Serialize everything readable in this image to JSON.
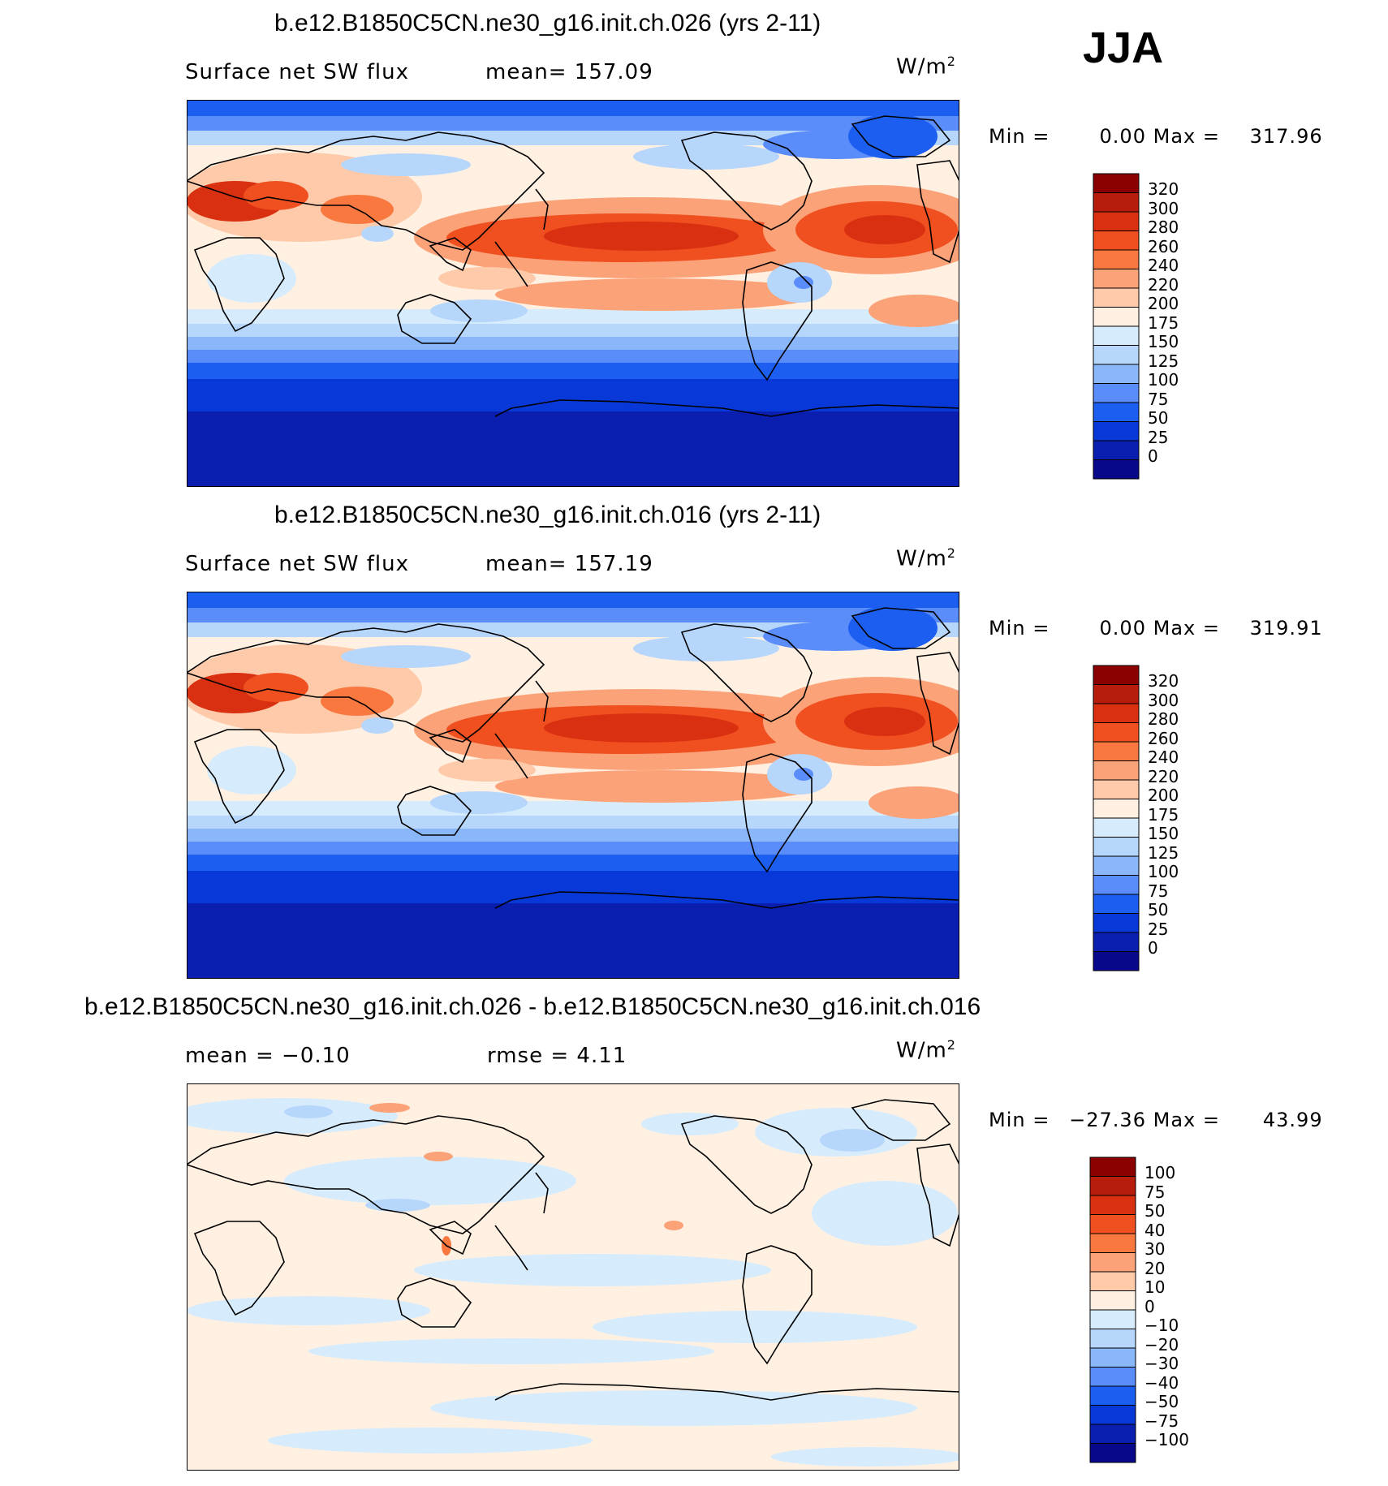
{
  "season": "JJA",
  "units_label": "W/m",
  "units_sup": "2",
  "panels": [
    {
      "title": "b.e12.B1850C5CN.ne30_g16.init.ch.026 (yrs 2-11)",
      "left_label": "Surface net SW flux",
      "center_label": "mean= 157.09",
      "min_label": "Min =",
      "min_value": "0.00",
      "max_label": "Max =",
      "max_value": "317.96",
      "colorbar_labels": [
        "320",
        "300",
        "280",
        "260",
        "240",
        "220",
        "200",
        "175",
        "150",
        "125",
        "100",
        "75",
        "50",
        "25",
        "0"
      ],
      "colorbar_colors": [
        "#8b0000",
        "#b71c0c",
        "#d83010",
        "#f05020",
        "#f87840",
        "#fca278",
        "#fecaaa",
        "#fff0e2",
        "#d6ecfc",
        "#b6d6fc",
        "#8ab6fa",
        "#5a8cfa",
        "#1c5ef0",
        "#0838d8",
        "#0a1eb0",
        "#08088a"
      ],
      "map_type": "abs"
    },
    {
      "title": "b.e12.B1850C5CN.ne30_g16.init.ch.016 (yrs 2-11)",
      "left_label": "Surface net SW flux",
      "center_label": "mean= 157.19",
      "min_label": "Min =",
      "min_value": "0.00",
      "max_label": "Max =",
      "max_value": "319.91",
      "colorbar_labels": [
        "320",
        "300",
        "280",
        "260",
        "240",
        "220",
        "200",
        "175",
        "150",
        "125",
        "100",
        "75",
        "50",
        "25",
        "0"
      ],
      "colorbar_colors": [
        "#8b0000",
        "#b71c0c",
        "#d83010",
        "#f05020",
        "#f87840",
        "#fca278",
        "#fecaaa",
        "#fff0e2",
        "#d6ecfc",
        "#b6d6fc",
        "#8ab6fa",
        "#5a8cfa",
        "#1c5ef0",
        "#0838d8",
        "#0a1eb0",
        "#08088a"
      ],
      "map_type": "abs"
    },
    {
      "title": "b.e12.B1850C5CN.ne30_g16.init.ch.026 - b.e12.B1850C5CN.ne30_g16.init.ch.016",
      "left_label": "mean = −0.10",
      "center_label": "rmse = 4.11",
      "min_label": "Min =",
      "min_value": "−27.36",
      "max_label": "Max =",
      "max_value": "43.99",
      "colorbar_labels": [
        "100",
        "75",
        "50",
        "40",
        "30",
        "20",
        "10",
        "0",
        "−10",
        "−20",
        "−30",
        "−40",
        "−50",
        "−75",
        "−100"
      ],
      "colorbar_colors": [
        "#8b0000",
        "#b71c0c",
        "#d83010",
        "#f05020",
        "#f87840",
        "#fca278",
        "#fecaaa",
        "#fff0e2",
        "#d6ecfc",
        "#b6d6fc",
        "#8ab6fa",
        "#5a8cfa",
        "#1c5ef0",
        "#0838d8",
        "#0a1eb0",
        "#08088a"
      ],
      "map_type": "diff"
    }
  ]
}
